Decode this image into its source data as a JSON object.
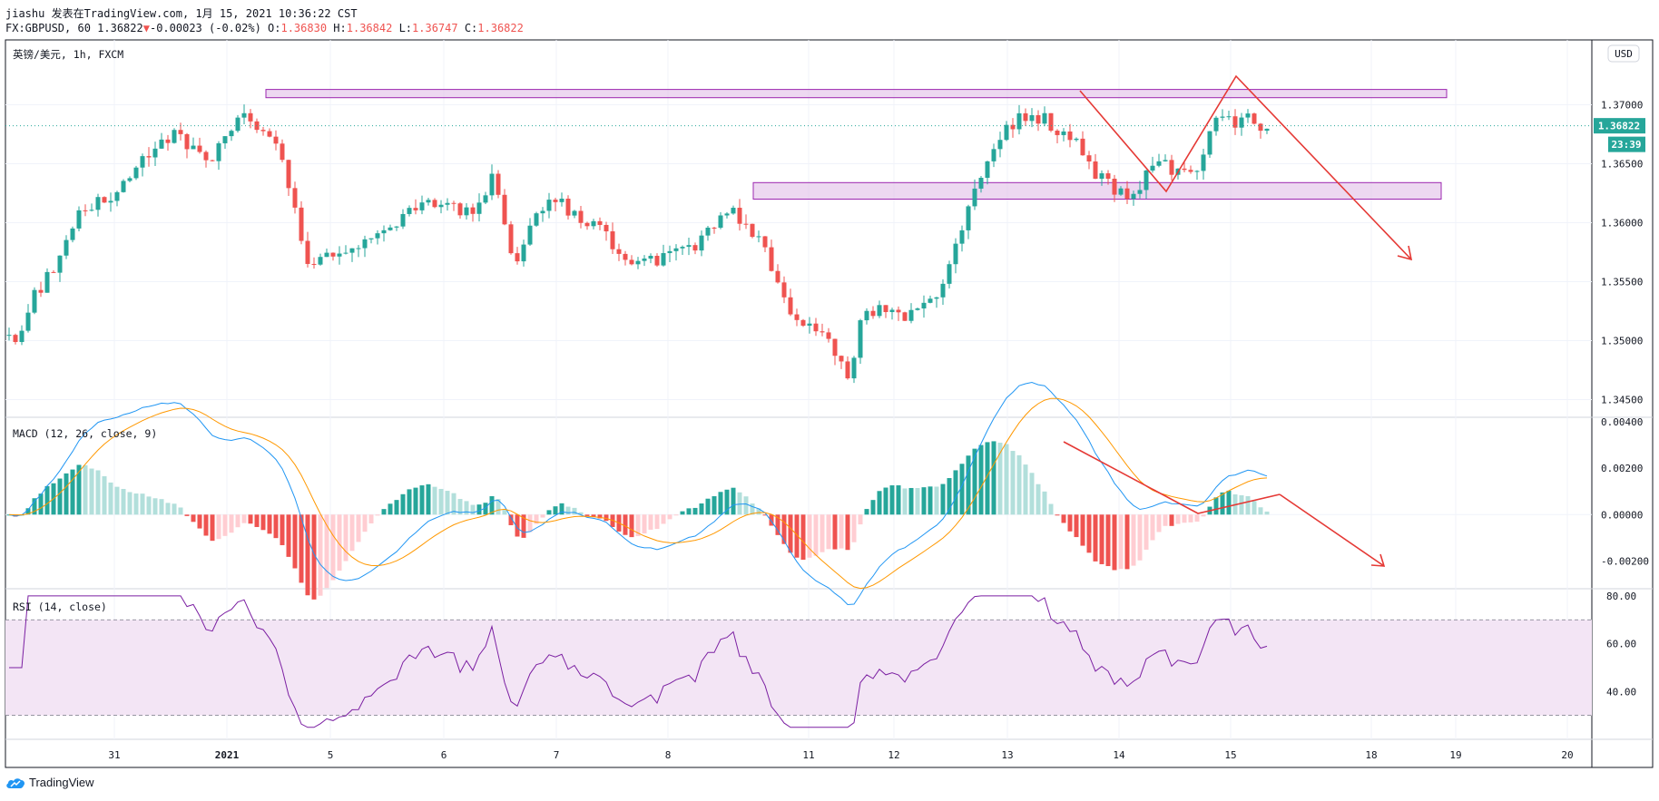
{
  "header": {
    "publisher_line": "jiashu 发表在TradingView.com, 1月 15, 2021 10:36:22 CST",
    "symbol": "FX:GBPUSD, 60",
    "last": "1.36822",
    "change_arrow": "▼",
    "change": "-0.00023 (-0.02%)",
    "o_label": "O:",
    "o_value": "1.36830",
    "h_label": "H:",
    "h_value": "1.36842",
    "l_label": "L:",
    "l_value": "1.36747",
    "c_label": "C:",
    "c_value": "1.36822"
  },
  "price_pane": {
    "title": "英镑/美元, 1h, FXCM",
    "currency_button": "USD",
    "last_price_tag": "1.36822",
    "countdown_tag": "23:39"
  },
  "macd_pane": {
    "title": "MACD (12, 26, close, 9)"
  },
  "rsi_pane": {
    "title": "RSI (14, close)"
  },
  "brand": {
    "name": "TradingView"
  },
  "colors": {
    "up": "#26a69a",
    "down": "#ef5350",
    "macd_line": "#2196f3",
    "signal_line": "#ff9800",
    "hist_up_strong": "#26a69a",
    "hist_up_weak": "#b2dfdb",
    "hist_down_strong": "#ef5350",
    "hist_down_weak": "#ffcdd2",
    "rsi_line": "#7b1fa2",
    "rsi_band": "#f3e5f5",
    "zone_fill": "#e1bee7",
    "zone_border": "#9c27b0",
    "drawing": "#e53935"
  },
  "chart_data": [
    {
      "type": "candlestick",
      "name": "price",
      "yticks": [
        "1.37000",
        "1.36500",
        "1.36000",
        "1.35500",
        "1.35000",
        "1.34500"
      ],
      "ylim": [
        1.3435,
        1.3755
      ],
      "xticks": [
        "31",
        "2021",
        "5",
        "6",
        "7",
        "8",
        "11",
        "12",
        "13",
        "14",
        "15",
        "18",
        "19",
        "20"
      ],
      "last_price": 1.36822,
      "close_path": [
        [
          0,
          1.3505
        ],
        [
          8,
          1.3495
        ],
        [
          20,
          1.3535
        ],
        [
          35,
          1.3555
        ],
        [
          55,
          1.36
        ],
        [
          70,
          1.3615
        ],
        [
          90,
          1.3622
        ],
        [
          105,
          1.3645
        ],
        [
          120,
          1.366
        ],
        [
          140,
          1.3675
        ],
        [
          160,
          1.3665
        ],
        [
          175,
          1.365
        ],
        [
          190,
          1.3675
        ],
        [
          200,
          1.369
        ],
        [
          215,
          1.368
        ],
        [
          230,
          1.3672
        ],
        [
          240,
          1.365
        ],
        [
          250,
          1.36
        ],
        [
          260,
          1.3565
        ],
        [
          280,
          1.357
        ],
        [
          300,
          1.358
        ],
        [
          320,
          1.359
        ],
        [
          340,
          1.3605
        ],
        [
          360,
          1.362
        ],
        [
          380,
          1.3615
        ],
        [
          395,
          1.361
        ],
        [
          410,
          1.3615
        ],
        [
          420,
          1.365
        ],
        [
          430,
          1.36
        ],
        [
          440,
          1.356
        ],
        [
          450,
          1.3595
        ],
        [
          470,
          1.362
        ],
        [
          480,
          1.3615
        ],
        [
          500,
          1.36
        ],
        [
          515,
          1.3595
        ],
        [
          530,
          1.3575
        ],
        [
          550,
          1.3565
        ],
        [
          570,
          1.357
        ],
        [
          590,
          1.3575
        ],
        [
          610,
          1.3595
        ],
        [
          625,
          1.361
        ],
        [
          640,
          1.36
        ],
        [
          655,
          1.358
        ],
        [
          665,
          1.355
        ],
        [
          680,
          1.3525
        ],
        [
          700,
          1.351
        ],
        [
          720,
          1.349
        ],
        [
          730,
          1.3465
        ],
        [
          740,
          1.352
        ],
        [
          760,
          1.353
        ],
        [
          780,
          1.352
        ],
        [
          800,
          1.353
        ],
        [
          815,
          1.3555
        ],
        [
          830,
          1.36
        ],
        [
          845,
          1.364
        ],
        [
          860,
          1.367
        ],
        [
          880,
          1.3692
        ],
        [
          900,
          1.3688
        ],
        [
          915,
          1.3675
        ],
        [
          930,
          1.3665
        ],
        [
          945,
          1.364
        ],
        [
          960,
          1.363
        ],
        [
          975,
          1.3625
        ],
        [
          990,
          1.364
        ],
        [
          1005,
          1.365
        ],
        [
          1020,
          1.364
        ],
        [
          1035,
          1.365
        ],
        [
          1050,
          1.369
        ],
        [
          1065,
          1.3685
        ],
        [
          1080,
          1.3688
        ],
        [
          1090,
          1.3682
        ]
      ]
    },
    {
      "type": "macd",
      "name": "MACD (12, 26, close, 9)",
      "yticks": [
        "0.00400",
        "0.00200",
        "0.00000",
        "-0.00200"
      ],
      "ylim": [
        -0.0032,
        0.0042
      ]
    },
    {
      "type": "line",
      "name": "RSI (14, close)",
      "yticks": [
        "80.00",
        "60.00",
        "40.00"
      ],
      "ylim": [
        20,
        83
      ],
      "band": [
        30,
        70
      ]
    }
  ]
}
